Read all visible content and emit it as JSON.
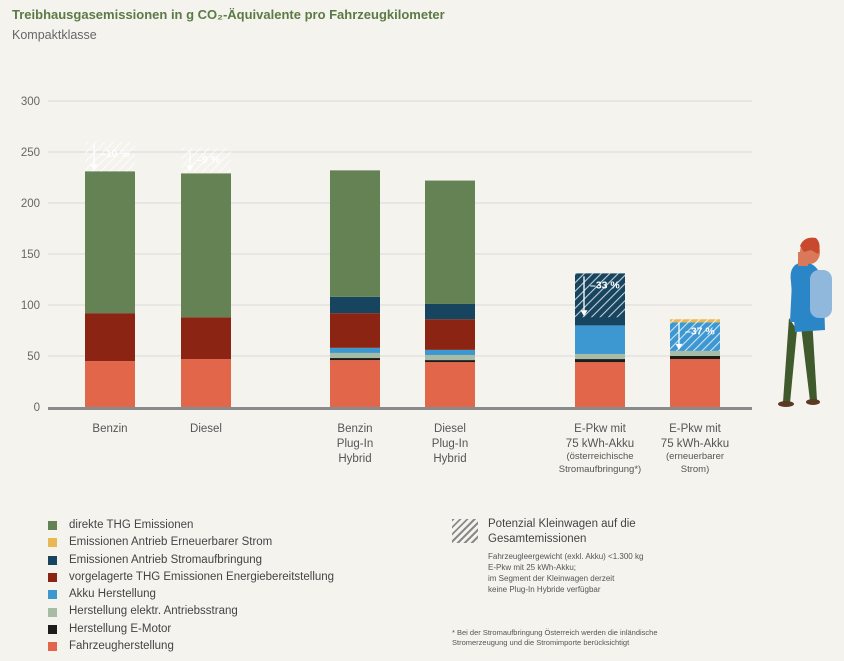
{
  "header": {
    "title": "Treibhausgasemissionen in g CO₂-Äquivalente pro Fahrzeugkilometer",
    "subtitle": "Kompaktklasse"
  },
  "chart_data": {
    "type": "bar",
    "stacked": true,
    "ylim": [
      0,
      300
    ],
    "yticks": [
      0,
      50,
      100,
      150,
      200,
      250,
      300
    ],
    "grid": true,
    "categories": [
      "Benzin",
      "Diesel",
      "Benzin Plug-In Hybrid",
      "Diesel Plug-In Hybrid",
      "E-Pkw mit 75 kWh-Akku (österreichische Stromaufbringung*)",
      "E-Pkw mit 75 kWh-Akku (erneuerbarer Strom)"
    ],
    "category_lines": [
      [
        "Benzin"
      ],
      [
        "Diesel"
      ],
      [
        "Benzin",
        "Plug-In",
        "Hybrid"
      ],
      [
        "Diesel",
        "Plug-In",
        "Hybrid"
      ],
      [
        "E-Pkw mit",
        "75 kWh-Akku",
        "(österreichische",
        "Stromaufbringung*)"
      ],
      [
        "E-Pkw mit",
        "75 kWh-Akku",
        "(erneuerbarer",
        "Strom)"
      ]
    ],
    "series": [
      {
        "name": "Fahrzeugherstellung",
        "color": "#e2664a",
        "values": [
          45,
          47,
          46,
          44,
          44,
          47
        ]
      },
      {
        "name": "Herstellung E-Motor",
        "color": "#1c1c1c",
        "values": [
          0,
          0,
          2,
          2,
          3,
          3
        ]
      },
      {
        "name": "Herstellung elektr. Antriebsstrang",
        "color": "#a7bca4",
        "values": [
          0,
          0,
          5,
          5,
          5,
          5
        ]
      },
      {
        "name": "Akku Herstellung",
        "color": "#3d97d1",
        "values": [
          0,
          0,
          5,
          5,
          28,
          28
        ]
      },
      {
        "name": "vorgelagerte THG Emissionen Energiebereitstellung",
        "color": "#8b2412",
        "values": [
          47,
          41,
          34,
          30,
          0,
          0
        ]
      },
      {
        "name": "Emissionen Antrieb Stromaufbringung",
        "color": "#17445f",
        "values": [
          0,
          0,
          16,
          15,
          51,
          0
        ]
      },
      {
        "name": "Emissionen Antrieb Erneuerbarer Strom",
        "color": "#e8b855",
        "values": [
          0,
          0,
          0,
          0,
          0,
          3
        ]
      },
      {
        "name": "direkte THG Emissionen",
        "color": "#658255",
        "values": [
          139,
          141,
          124,
          121,
          0,
          0
        ]
      }
    ],
    "potenzial": [
      {
        "index": 0,
        "from": 231,
        "to": 260,
        "label": "–10 %"
      },
      {
        "index": 1,
        "from": 230,
        "to": 254,
        "label": "–9 %"
      },
      {
        "index": 4,
        "from": 88,
        "to": 131,
        "label": "–33 %"
      },
      {
        "index": 5,
        "from": 55,
        "to": 86,
        "label": "–37 %"
      }
    ]
  },
  "legend": {
    "items": [
      {
        "label": "direkte THG Emissionen",
        "color": "#658255"
      },
      {
        "label": "Emissionen Antrieb Erneuerbarer Strom",
        "color": "#e8b855"
      },
      {
        "label": "Emissionen Antrieb Stromaufbringung",
        "color": "#17445f"
      },
      {
        "label": "vorgelagerte THG Emissionen Energiebereitstellung",
        "color": "#8b2412"
      },
      {
        "label": "Akku Herstellung",
        "color": "#3d97d1"
      },
      {
        "label": "Herstellung elektr. Antriebsstrang",
        "color": "#a7bca4"
      },
      {
        "label": "Herstellung E-Motor",
        "color": "#1c1c1c"
      },
      {
        "label": "Fahrzeugherstellung",
        "color": "#e2664a"
      }
    ],
    "potenzial_label": "Potenzial Kleinwagen auf die Gesamtemissionen",
    "potenzial_note": [
      "Fahrzeugleergewicht (exkl. Akku) <1.300 kg",
      "E-Pkw mit 25 kWh-Akku;",
      "im Segment der Kleinwagen derzeit",
      "keine Plug-In Hybride verfügbar"
    ]
  },
  "footnote": [
    "* Bei der Stromaufbringung Österreich werden die inländische",
    "Stromerzeugung und die Stromimporte berücksichtigt"
  ]
}
